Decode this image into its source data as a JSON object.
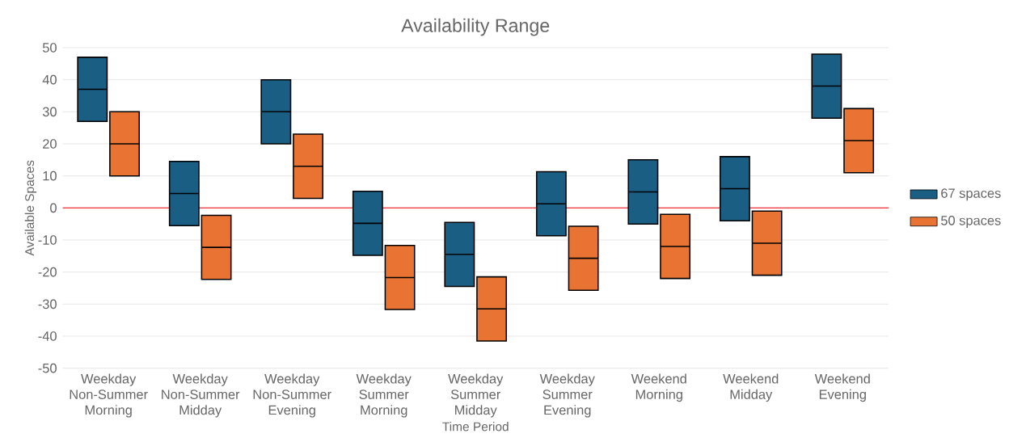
{
  "chart_data": {
    "type": "box",
    "title": "Availability Range",
    "xlabel": "Time Period",
    "ylabel": "Available Spaces",
    "categories": [
      "Weekday Non-Summer Morning",
      "Weekday Non-Summer Midday",
      "Weekday Non-Summer Evening",
      "Weekday Summer Morning",
      "Weekday Summer Midday",
      "Weekday Summer Evening",
      "Weekend Morning",
      "Weekend Midday",
      "Weekend Evening"
    ],
    "series": [
      {
        "name": "67 spaces",
        "color": "#1a5e83",
        "boxes": [
          {
            "low": 27,
            "q1": 27,
            "median": 37,
            "q3": 47,
            "high": 47
          },
          {
            "low": -5.5,
            "q1": -5.5,
            "median": 4.5,
            "q3": 14.5,
            "high": 14.5
          },
          {
            "low": 20,
            "q1": 20,
            "median": 30,
            "q3": 40,
            "high": 40
          },
          {
            "low": -14.8,
            "q1": -14.8,
            "median": -4.8,
            "q3": 5.2,
            "high": 5.2
          },
          {
            "low": -24.5,
            "q1": -24.5,
            "median": -14.5,
            "q3": -4.5,
            "high": -4.5
          },
          {
            "low": -8.7,
            "q1": -8.7,
            "median": 1.3,
            "q3": 11.3,
            "high": 11.3
          },
          {
            "low": -5,
            "q1": -5,
            "median": 5,
            "q3": 15,
            "high": 15
          },
          {
            "low": -4,
            "q1": -4,
            "median": 6,
            "q3": 16,
            "high": 16
          },
          {
            "low": 28,
            "q1": 28,
            "median": 38,
            "q3": 48,
            "high": 48
          }
        ]
      },
      {
        "name": "50 spaces",
        "color": "#e87333",
        "boxes": [
          {
            "low": 10,
            "q1": 10,
            "median": 20,
            "q3": 30,
            "high": 30
          },
          {
            "low": -22.3,
            "q1": -22.3,
            "median": -12.3,
            "q3": -2.3,
            "high": -2.3
          },
          {
            "low": 3,
            "q1": 3,
            "median": 13,
            "q3": 23,
            "high": 23
          },
          {
            "low": -31.7,
            "q1": -31.7,
            "median": -21.7,
            "q3": -11.7,
            "high": -11.7
          },
          {
            "low": -41.5,
            "q1": -41.5,
            "median": -31.5,
            "q3": -21.5,
            "high": -21.5
          },
          {
            "low": -25.7,
            "q1": -25.7,
            "median": -15.7,
            "q3": -5.7,
            "high": -5.7
          },
          {
            "low": -22,
            "q1": -22,
            "median": -12,
            "q3": -2,
            "high": -2
          },
          {
            "low": -21,
            "q1": -21,
            "median": -11,
            "q3": -1,
            "high": -1
          },
          {
            "low": 11,
            "q1": 11,
            "median": 21,
            "q3": 31,
            "high": 31
          }
        ]
      }
    ],
    "ylim": [
      -50,
      50
    ],
    "yticks": [
      -50,
      -40,
      -30,
      -20,
      -10,
      0,
      10,
      20,
      30,
      40,
      50
    ],
    "ref_lines": [
      {
        "axis": "y",
        "value": 0,
        "color": "#f0444a"
      }
    ],
    "grid": "y",
    "legend": "right"
  }
}
